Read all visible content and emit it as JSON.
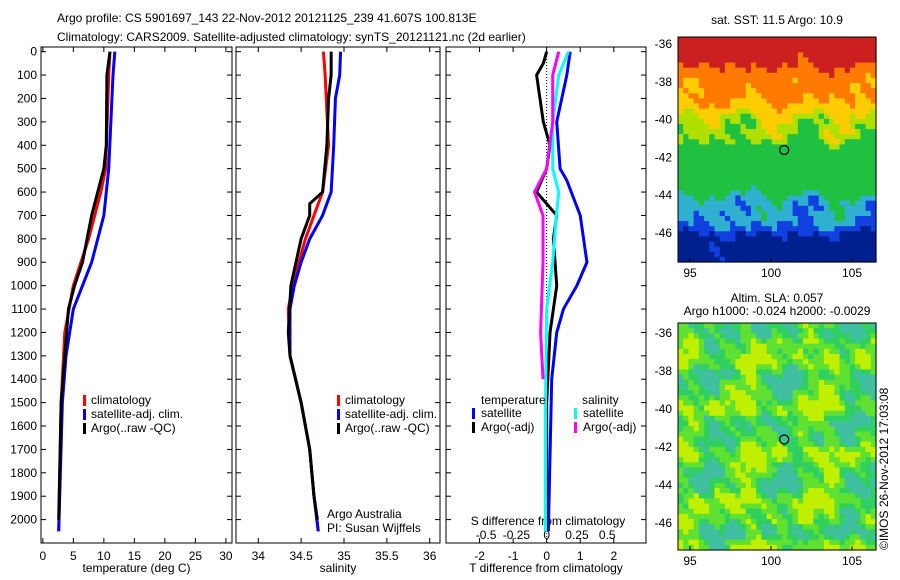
{
  "title": {
    "line1": "Argo profile: CS 5901697_143 22-Nov-2012 20121125_239 41.607S 100.813E",
    "line2": "Climatology: CARS2009. Satellite-adjusted climatology: synTS_20121121.nc (2d earlier)"
  },
  "colors": {
    "climatology": "#ff0000",
    "satellite": "#0000ff",
    "argo": "#000000",
    "sal_satellite": "#00ffff",
    "sal_argo": "#ff00ff"
  },
  "chart_data": [
    {
      "type": "line",
      "name": "temperature",
      "xlabel": "temperature (deg C)",
      "xlim": [
        -0.3,
        31
      ],
      "ylim": [
        -20,
        2100
      ],
      "xticks": [
        "0",
        "5",
        "10",
        "15",
        "20",
        "25",
        "30"
      ],
      "xtick_values": [
        0,
        5,
        10,
        15,
        20,
        25,
        30
      ],
      "yticks": [
        "0",
        "100",
        "200",
        "300",
        "400",
        "500",
        "600",
        "700",
        "800",
        "900",
        "1000",
        "1100",
        "1200",
        "1300",
        "1400",
        "1500",
        "1600",
        "1700",
        "1800",
        "1900",
        "2000"
      ],
      "legend": [
        "climatology",
        "satellite-adj. clim.",
        "Argo(..raw -QC)"
      ],
      "series": [
        {
          "name": "climatology",
          "color": "#ff0000",
          "depth": [
            0,
            100,
            500,
            600,
            800,
            1000,
            1200,
            1500,
            2050
          ],
          "values": [
            11,
            10.8,
            10.3,
            9.5,
            7.5,
            5,
            3.6,
            3,
            2.6
          ]
        },
        {
          "name": "satellite-adj. clim.",
          "color": "#0000ff",
          "depth": [
            0,
            100,
            500,
            700,
            900,
            1100,
            1300,
            1500,
            2050
          ],
          "values": [
            11.8,
            11.5,
            10.8,
            10,
            8,
            5,
            3.8,
            3.2,
            2.6
          ]
        },
        {
          "name": "Argo",
          "color": "#000000",
          "depth": [
            0,
            100,
            400,
            500,
            600,
            700,
            900,
            1000,
            1100,
            1300,
            1500,
            2000
          ],
          "values": [
            11,
            10.5,
            10.4,
            10,
            9,
            8,
            6.5,
            5.2,
            4.2,
            3.6,
            3,
            2.6
          ]
        }
      ]
    },
    {
      "type": "line",
      "name": "salinity",
      "xlabel": "salinity",
      "xlim": [
        33.74,
        36.12
      ],
      "ylim": [
        -20,
        2100
      ],
      "xticks": [
        "34",
        "34.5",
        "35",
        "35.5",
        "36"
      ],
      "xtick_values": [
        34,
        34.5,
        35,
        35.5,
        36
      ],
      "legend": [
        "climatology",
        "satellite-adj. clim.",
        "Argo(..raw -QC)"
      ],
      "annotation": [
        "Argo Australia",
        "PI: Susan Wijffels"
      ],
      "series": [
        {
          "name": "climatology",
          "color": "#ff0000",
          "depth": [
            0,
            100,
            400,
            600,
            800,
            1000,
            1100,
            1300,
            1500,
            1700,
            1900,
            2050
          ],
          "values": [
            34.76,
            34.78,
            34.82,
            34.75,
            34.55,
            34.4,
            34.35,
            34.37,
            34.5,
            34.6,
            34.65,
            34.7
          ]
        },
        {
          "name": "satellite-adj. clim.",
          "color": "#0000ff",
          "depth": [
            0,
            100,
            200,
            400,
            600,
            700,
            800,
            900,
            1000,
            1100,
            1300,
            1500,
            1700,
            1900,
            2050
          ],
          "values": [
            34.96,
            34.95,
            34.9,
            34.88,
            34.85,
            34.75,
            34.6,
            34.5,
            34.42,
            34.37,
            34.37,
            34.5,
            34.6,
            34.65,
            34.7
          ]
        },
        {
          "name": "Argo",
          "color": "#000000",
          "depth": [
            0,
            100,
            200,
            400,
            600,
            650,
            700,
            800,
            1000,
            1200,
            1300,
            1500,
            1700,
            1900,
            2000
          ],
          "values": [
            34.85,
            34.85,
            34.82,
            34.8,
            34.75,
            34.6,
            34.6,
            34.5,
            34.38,
            34.35,
            34.37,
            34.5,
            34.6,
            34.65,
            34.69
          ]
        }
      ]
    },
    {
      "type": "line",
      "name": "difference",
      "xlabel": "T difference from climatology",
      "x2label": "S difference from climatology",
      "xlim": [
        -3,
        2.96
      ],
      "ylim": [
        -20,
        2100
      ],
      "xticks": [
        "-2",
        "-1",
        "0",
        "1",
        "2"
      ],
      "xtick_values": [
        -2,
        -1,
        0,
        1,
        2
      ],
      "x2ticks": [
        "-0.5",
        "-0.25",
        "0",
        "0.25",
        "0.5"
      ],
      "x2tick_values": [
        -0.5,
        -0.25,
        0,
        0.25,
        0.5
      ],
      "legend": {
        "temperature_title": "temperature",
        "salinity_title": "salinity",
        "t_satellite": "satellite",
        "t_argo": "Argo(-adj)",
        "s_satellite": "satellite",
        "s_argo": "Argo(-adj)"
      },
      "series": [
        {
          "name": "T satellite",
          "unit": "T",
          "color": "#0000ff",
          "depth": [
            0,
            100,
            300,
            500,
            550,
            700,
            800,
            900,
            1000,
            1100,
            1200,
            1400,
            2050
          ],
          "values": [
            0.7,
            0.6,
            0.3,
            0.4,
            0.6,
            1.0,
            1.1,
            1.2,
            0.9,
            0.5,
            0.3,
            0.15,
            0.05
          ]
        },
        {
          "name": "T Argo(-adj)",
          "unit": "T",
          "color": "#000000",
          "depth": [
            0,
            50,
            100,
            200,
            300,
            400,
            500,
            600,
            700,
            800,
            1000,
            1200,
            1500,
            2050
          ],
          "values": [
            0,
            -0.1,
            -0.3,
            -0.2,
            -0.1,
            0.1,
            0,
            -0.3,
            0.3,
            0.2,
            0.3,
            0.1,
            0,
            0
          ]
        },
        {
          "name": "S satellite",
          "unit": "S",
          "color": "#00ffff",
          "depth": [
            0,
            100,
            300,
            500,
            600,
            700,
            900,
            1100,
            1500,
            2050
          ],
          "values": [
            0.18,
            0.1,
            0.05,
            0.05,
            0.1,
            0.08,
            0.05,
            0,
            -0.01,
            -0.01
          ]
        },
        {
          "name": "S Argo(-adj)",
          "unit": "S",
          "color": "#ff00ff",
          "depth": [
            0,
            100,
            300,
            500,
            600,
            700,
            900,
            1200,
            1400
          ],
          "values": [
            0.1,
            0.05,
            0.05,
            0,
            -0.1,
            -0.03,
            -0.03,
            -0.05,
            -0.03
          ]
        }
      ]
    },
    {
      "type": "heatmap",
      "name": "sst-map",
      "title": "sat. SST: 11.5 Argo: 10.9",
      "xticks": [
        "95",
        "100",
        "105"
      ],
      "yticks": [
        "-36",
        "-38",
        "-40",
        "-42",
        "-44",
        "-46"
      ],
      "marker": {
        "lon": 100.813,
        "lat": -41.607
      }
    },
    {
      "type": "heatmap",
      "name": "sla-map",
      "title": "Altim. SLA: 0.057",
      "subtitle": "Argo h1000: -0.024 h2000: -0.0029",
      "xticks": [
        "95",
        "100",
        "105"
      ],
      "yticks": [
        "-36",
        "-38",
        "-40",
        "-42",
        "-44",
        "-46"
      ],
      "marker": {
        "lon": 100.813,
        "lat": -41.607
      }
    }
  ],
  "credit": "©IMOS 26-Nov-2012 17:03:08"
}
